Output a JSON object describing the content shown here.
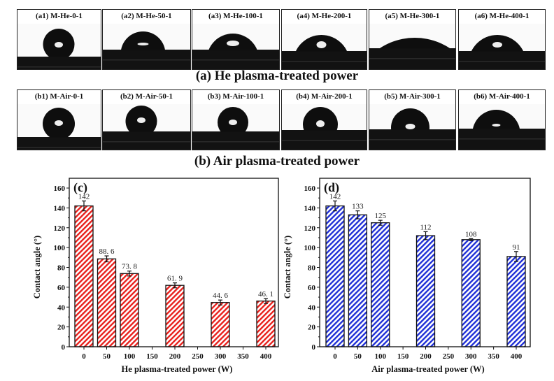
{
  "photos": {
    "row_a": {
      "title": "(a) He plasma-treated power",
      "panels": [
        "(a1) M-He-0-1",
        "(a2) M-He-50-1",
        "(a3) M-He-100-1",
        "(a4) M-He-200-1",
        "(a5) M-He-300-1",
        "(a6) M-He-400-1"
      ]
    },
    "row_b": {
      "title": "(b) Air plasma-treated power",
      "panels": [
        "(b1) M-Air-0-1",
        "(b2) M-Air-50-1",
        "(b3) M-Air-100-1",
        "(b4) M-Air-200-1",
        "(b5) M-Air-300-1",
        "(b6) M-Air-400-1"
      ]
    }
  },
  "chart_data": [
    {
      "type": "bar",
      "panel_label": "(c)",
      "xlabel": "He plasma-treated power (W)",
      "ylabel": "Contact angle (°)",
      "x_ticks": [
        0,
        50,
        100,
        150,
        200,
        250,
        300,
        350,
        400
      ],
      "y_ticks": [
        0,
        20,
        40,
        60,
        80,
        100,
        120,
        140,
        160
      ],
      "xlim": [
        -25,
        425
      ],
      "ylim": [
        0,
        166
      ],
      "x": [
        0,
        50,
        100,
        200,
        300,
        400
      ],
      "values": [
        142,
        88.6,
        73.8,
        61.9,
        44.6,
        46.1
      ],
      "errors": [
        5,
        3,
        2.5,
        2.5,
        2.5,
        2.5
      ],
      "data_labels": [
        "142",
        "88. 6",
        "73. 8",
        "61. 9",
        "44. 6",
        "46. 1"
      ],
      "fill": "hatched",
      "color": "#e8201c"
    },
    {
      "type": "bar",
      "panel_label": "(d)",
      "xlabel": "Air plasma-treated power (W)",
      "ylabel": "Contact angle (°)",
      "x_ticks": [
        0,
        50,
        100,
        150,
        200,
        250,
        300,
        350,
        400
      ],
      "y_ticks": [
        0,
        20,
        40,
        60,
        80,
        100,
        120,
        140,
        160
      ],
      "xlim": [
        -25,
        425
      ],
      "ylim": [
        0,
        166
      ],
      "x": [
        0,
        50,
        100,
        200,
        300,
        400
      ],
      "values": [
        142,
        133,
        125,
        112,
        108,
        91
      ],
      "errors": [
        5,
        4,
        2.5,
        4,
        1,
        5
      ],
      "data_labels": [
        "142",
        "133",
        "125",
        "112",
        "108",
        "91"
      ],
      "fill": "hatched",
      "color": "#1f2fd6"
    }
  ]
}
